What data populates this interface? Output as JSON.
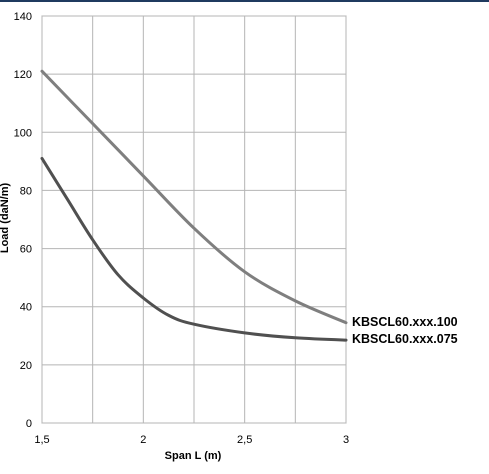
{
  "header_rule_color": "#1f3a5f",
  "chart_data": {
    "type": "line",
    "xlabel": "Span L (m)",
    "ylabel": "Load (daN/m)",
    "xlim": [
      1.5,
      3
    ],
    "ylim": [
      0,
      140
    ],
    "x_ticks": [
      1.5,
      1.75,
      2,
      2.25,
      2.5,
      2.75,
      3
    ],
    "x_tick_labels": [
      "1,5",
      "",
      "2",
      "",
      "2,5",
      "",
      "3"
    ],
    "y_ticks": [
      0,
      20,
      40,
      60,
      80,
      100,
      120,
      140
    ],
    "y_tick_labels": [
      "0",
      "20",
      "40",
      "60",
      "80",
      "100",
      "120",
      "140"
    ],
    "grid": true,
    "legend": "end-of-line labels (right)",
    "series": [
      {
        "name": "KBSCL60.xxx.100",
        "color": "#7f7f7f",
        "x": [
          1.5,
          1.75,
          2.0,
          2.25,
          2.5,
          2.75,
          3.0
        ],
        "y": [
          121,
          103,
          85,
          67,
          52,
          42,
          34.5
        ]
      },
      {
        "name": "KBSCL60.xxx.075",
        "color": "#505050",
        "x": [
          1.5,
          1.625,
          1.75,
          1.875,
          2.0,
          2.125,
          2.25,
          2.5,
          2.75,
          3.0
        ],
        "y": [
          91,
          77,
          63,
          51,
          43,
          37,
          34,
          31,
          29.3,
          28.5
        ]
      }
    ]
  }
}
